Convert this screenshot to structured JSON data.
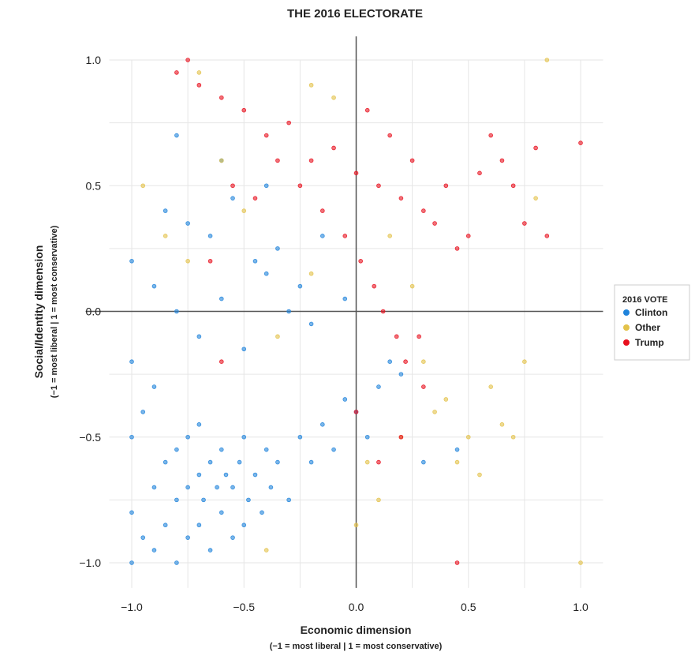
{
  "chart_data": {
    "type": "scatter",
    "title": "THE 2016 ELECTORATE",
    "xlabel": "Economic dimension",
    "xlabel_sub": "(−1 = most liberal | 1 = most conservative)",
    "ylabel": "Social/Identity dimension",
    "ylabel_sub": "(−1 = most liberal | 1 = most conservative)",
    "xlim": [
      -1.1,
      1.1
    ],
    "ylim": [
      -1.1,
      1.1
    ],
    "x_ticks": [
      -1.0,
      -0.5,
      0.0,
      0.5,
      1.0
    ],
    "x_tick_labels": [
      "−1.0",
      "−0.5",
      "0.0",
      "0.5",
      "1.0"
    ],
    "y_ticks": [
      -1.0,
      -0.5,
      0.0,
      0.5,
      1.0
    ],
    "y_tick_labels": [
      "−1.0",
      "−0.5",
      "0.0",
      "0.5",
      "1.0"
    ],
    "grid": true,
    "legend": {
      "title": "2016 VOTE",
      "placement": "right",
      "entries": [
        "Clinton",
        "Other",
        "Trump"
      ]
    },
    "series": [
      {
        "name": "Clinton",
        "color": "#1f83db",
        "x": [
          -1.0,
          -1.0,
          -1.0,
          -1.0,
          -1.0,
          -0.95,
          -0.95,
          -0.9,
          -0.9,
          -0.9,
          -0.85,
          -0.85,
          -0.8,
          -0.8,
          -0.8,
          -0.75,
          -0.75,
          -0.75,
          -0.7,
          -0.7,
          -0.7,
          -0.68,
          -0.65,
          -0.65,
          -0.62,
          -0.6,
          -0.6,
          -0.58,
          -0.55,
          -0.55,
          -0.52,
          -0.5,
          -0.5,
          -0.48,
          -0.45,
          -0.42,
          -0.4,
          -0.38,
          -0.35,
          -0.3,
          -0.25,
          -0.2,
          -0.15,
          -0.1,
          -0.05,
          0.0,
          0.05,
          0.1,
          0.15,
          0.2,
          0.3,
          0.45,
          -0.9,
          -0.8,
          -0.7,
          -0.6,
          -0.5,
          -0.4,
          -0.3,
          -0.2,
          -0.85,
          -0.75,
          -0.65,
          -0.55,
          -0.45,
          -0.35,
          -0.25,
          -0.15,
          -0.05,
          -0.8,
          -0.6,
          -0.4
        ],
        "y": [
          -1.0,
          -0.8,
          -0.5,
          -0.2,
          0.2,
          -0.9,
          -0.4,
          -0.95,
          -0.7,
          -0.3,
          -0.85,
          -0.6,
          -1.0,
          -0.75,
          -0.55,
          -0.9,
          -0.7,
          -0.5,
          -0.85,
          -0.65,
          -0.45,
          -0.75,
          -0.95,
          -0.6,
          -0.7,
          -0.8,
          -0.55,
          -0.65,
          -0.9,
          -0.7,
          -0.6,
          -0.85,
          -0.5,
          -0.75,
          -0.65,
          -0.8,
          -0.55,
          -0.7,
          -0.6,
          -0.75,
          -0.5,
          -0.6,
          -0.45,
          -0.55,
          -0.35,
          -0.4,
          -0.5,
          -0.3,
          -0.2,
          -0.25,
          -0.6,
          -0.55,
          0.1,
          0.0,
          -0.1,
          0.05,
          -0.15,
          0.15,
          0.0,
          -0.05,
          0.4,
          0.35,
          0.3,
          0.45,
          0.2,
          0.25,
          0.1,
          0.3,
          0.05,
          0.7,
          0.6,
          0.5
        ]
      },
      {
        "name": "Other",
        "color": "#e3c24a",
        "x": [
          -0.95,
          -0.85,
          -0.75,
          -0.6,
          -0.5,
          -0.35,
          -0.2,
          -0.1,
          0.05,
          0.1,
          0.2,
          0.25,
          0.3,
          0.35,
          0.4,
          0.45,
          0.5,
          0.55,
          0.6,
          0.65,
          0.7,
          0.75,
          0.8,
          0.85,
          1.0,
          -0.7,
          -0.4,
          -0.2,
          0.0,
          0.15
        ],
        "y": [
          0.5,
          0.3,
          0.2,
          0.6,
          0.4,
          -0.1,
          0.9,
          0.85,
          -0.6,
          -0.75,
          -0.5,
          0.1,
          -0.2,
          -0.4,
          -0.35,
          -0.6,
          -0.5,
          -0.65,
          -0.3,
          -0.45,
          -0.5,
          -0.2,
          0.45,
          1.0,
          -1.0,
          0.95,
          -0.95,
          0.15,
          -0.85,
          0.3
        ]
      },
      {
        "name": "Trump",
        "color": "#e8101e",
        "x": [
          -0.8,
          -0.7,
          -0.6,
          -0.5,
          -0.4,
          -0.3,
          -0.2,
          -0.1,
          0.0,
          0.05,
          0.1,
          0.15,
          0.2,
          0.25,
          0.3,
          0.35,
          0.4,
          0.45,
          0.5,
          0.55,
          0.6,
          0.65,
          0.7,
          0.75,
          0.8,
          0.85,
          1.0,
          -0.15,
          -0.05,
          0.02,
          0.08,
          0.12,
          0.18,
          0.22,
          0.28,
          -0.25,
          -0.35,
          -0.45,
          -0.55,
          -0.65,
          0.0,
          0.1,
          0.2,
          0.3,
          0.45,
          -0.75,
          -0.6
        ],
        "y": [
          0.95,
          0.9,
          0.85,
          0.8,
          0.7,
          0.75,
          0.6,
          0.65,
          0.55,
          0.8,
          0.5,
          0.7,
          0.45,
          0.6,
          0.4,
          0.35,
          0.5,
          0.25,
          0.3,
          0.55,
          0.7,
          0.6,
          0.5,
          0.35,
          0.65,
          0.3,
          0.67,
          0.4,
          0.3,
          0.2,
          0.1,
          0.0,
          -0.1,
          -0.2,
          -0.1,
          0.5,
          0.6,
          0.45,
          0.5,
          0.2,
          -0.4,
          -0.6,
          -0.5,
          -0.3,
          -1.0,
          1.0,
          -0.2
        ]
      }
    ]
  }
}
